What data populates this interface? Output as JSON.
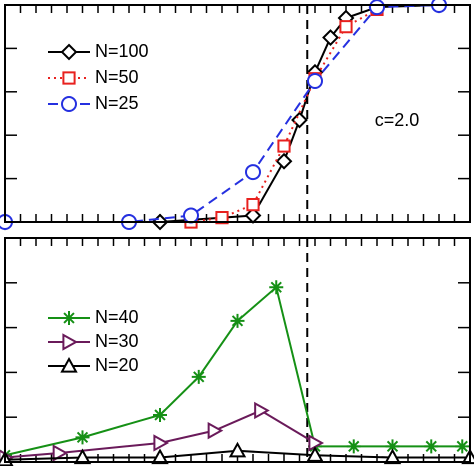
{
  "chart_data": [
    {
      "type": "line",
      "xlim": [
        0,
        30
      ],
      "ylim": [
        0,
        1
      ],
      "xticks": [
        0,
        1,
        2,
        3,
        4,
        5,
        6,
        7,
        8,
        9,
        10,
        11,
        12,
        13,
        14,
        15,
        16,
        17,
        18,
        19,
        20,
        21,
        22,
        23,
        24,
        25,
        26,
        27,
        28,
        29,
        30
      ],
      "yticks": [
        0,
        0.2,
        0.4,
        0.6,
        0.8,
        1
      ],
      "vlines": [
        19.5
      ],
      "annotation": "c=2.0",
      "legend": "upper left",
      "series": [
        {
          "name": "N=100",
          "color": "#000000",
          "marker": "diamond",
          "dash": "solid",
          "x": [
            0,
            10,
            16,
            18,
            19,
            20,
            21,
            22,
            24,
            28
          ],
          "values": [
            0,
            0,
            0.03,
            0.28,
            0.47,
            0.69,
            0.85,
            0.94,
            0.99,
            1.0
          ]
        },
        {
          "name": "N=50",
          "color": "#e8211f",
          "marker": "square",
          "dash": "dotted",
          "x": [
            12,
            14,
            16,
            18,
            20,
            22,
            24
          ],
          "values": [
            0,
            0.02,
            0.08,
            0.35,
            0.66,
            0.9,
            0.98
          ]
        },
        {
          "name": "N=25",
          "color": "#2530e0",
          "marker": "circle",
          "dash": "dashed",
          "x": [
            0,
            8,
            12,
            16,
            20,
            24,
            28
          ],
          "values": [
            0,
            0,
            0.03,
            0.23,
            0.65,
            0.99,
            1.0
          ]
        }
      ]
    },
    {
      "type": "line",
      "xlim": [
        0,
        30
      ],
      "ylim": [
        0,
        1
      ],
      "xticks": [
        0,
        1,
        2,
        3,
        4,
        5,
        6,
        7,
        8,
        9,
        10,
        11,
        12,
        13,
        14,
        15,
        16,
        17,
        18,
        19,
        20,
        21,
        22,
        23,
        24,
        25,
        26,
        27,
        28,
        29,
        30
      ],
      "yticks": [
        0,
        0.2,
        0.4,
        0.6,
        0.8,
        1
      ],
      "vlines": [
        19.5
      ],
      "legend": "center left",
      "series": [
        {
          "name": "N=40",
          "color": "#159015",
          "marker": "star",
          "dash": "solid",
          "x": [
            0,
            5,
            10,
            12.5,
            15,
            17.5,
            20,
            22.5,
            25,
            27.5,
            29.5
          ],
          "values": [
            0.03,
            0.11,
            0.21,
            0.38,
            0.63,
            0.78,
            0.07,
            0.07,
            0.07,
            0.07,
            0.07
          ]
        },
        {
          "name": "N=30",
          "color": "#6a1a5a",
          "marker": "triangle-right",
          "dash": "solid",
          "x": [
            0,
            3.5,
            10,
            13.5,
            16.5,
            20
          ],
          "values": [
            0.02,
            0.04,
            0.085,
            0.14,
            0.23,
            0.085
          ]
        },
        {
          "name": "N=20",
          "color": "#000000",
          "marker": "triangle-up",
          "dash": "solid",
          "x": [
            0,
            5,
            10,
            15,
            20,
            25,
            30
          ],
          "values": [
            0.01,
            0.02,
            0.02,
            0.05,
            0.03,
            0.02,
            0.02
          ]
        }
      ]
    }
  ]
}
